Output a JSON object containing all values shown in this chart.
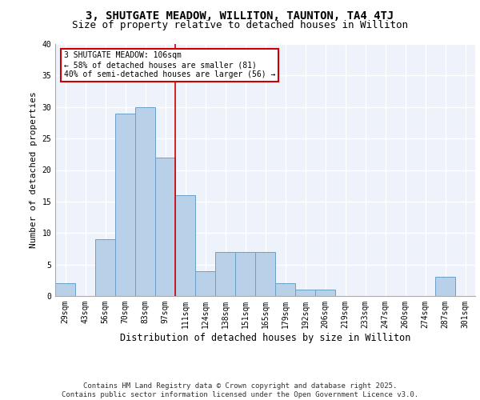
{
  "title1": "3, SHUTGATE MEADOW, WILLITON, TAUNTON, TA4 4TJ",
  "title2": "Size of property relative to detached houses in Williton",
  "xlabel": "Distribution of detached houses by size in Williton",
  "ylabel": "Number of detached properties",
  "categories": [
    "29sqm",
    "43sqm",
    "56sqm",
    "70sqm",
    "83sqm",
    "97sqm",
    "111sqm",
    "124sqm",
    "138sqm",
    "151sqm",
    "165sqm",
    "179sqm",
    "192sqm",
    "206sqm",
    "219sqm",
    "233sqm",
    "247sqm",
    "260sqm",
    "274sqm",
    "287sqm",
    "301sqm"
  ],
  "values": [
    2,
    0,
    9,
    29,
    30,
    22,
    16,
    4,
    7,
    7,
    7,
    2,
    1,
    1,
    0,
    0,
    0,
    0,
    0,
    3,
    0
  ],
  "bar_color": "#b8d0e8",
  "bar_edge_color": "#6aa0c8",
  "vline_color": "#cc0000",
  "annotation_text": "3 SHUTGATE MEADOW: 106sqm\n← 58% of detached houses are smaller (81)\n40% of semi-detached houses are larger (56) →",
  "annotation_box_color": "#ffffff",
  "annotation_box_edge": "#cc0000",
  "background_color": "#eef2fa",
  "grid_color": "#ffffff",
  "ylim": [
    0,
    40
  ],
  "yticks": [
    0,
    5,
    10,
    15,
    20,
    25,
    30,
    35,
    40
  ],
  "footer": "Contains HM Land Registry data © Crown copyright and database right 2025.\nContains public sector information licensed under the Open Government Licence v3.0.",
  "title1_fontsize": 10,
  "title2_fontsize": 9,
  "xlabel_fontsize": 8.5,
  "ylabel_fontsize": 8,
  "tick_fontsize": 7,
  "footer_fontsize": 6.5,
  "annot_fontsize": 7
}
